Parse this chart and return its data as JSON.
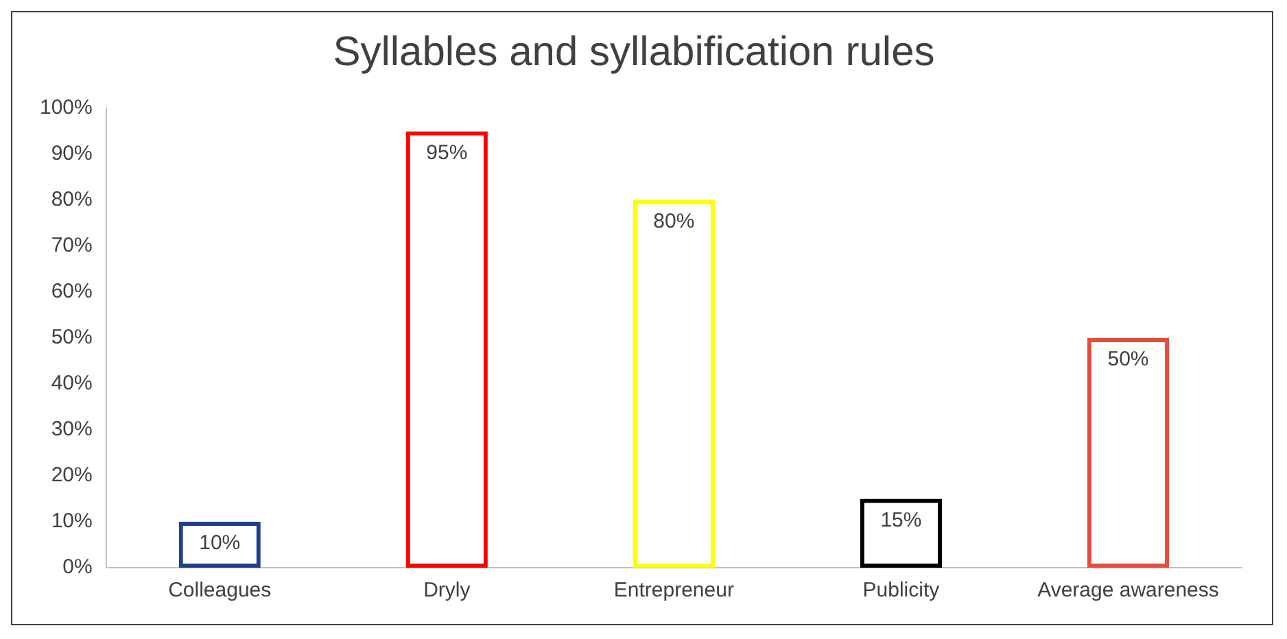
{
  "chart_data": {
    "type": "bar",
    "title": "Syllables and syllabification rules",
    "categories": [
      "Colleagues",
      "Dryly",
      "Entrepreneur",
      "Publicity",
      "Average awareness"
    ],
    "values": [
      10,
      95,
      80,
      15,
      50
    ],
    "colors": [
      "#1f3f8f",
      "#ff0000",
      "#ffff00",
      "#000000",
      "#e84c3d"
    ],
    "value_labels": [
      "10%",
      "95%",
      "80%",
      "15%",
      "50%"
    ],
    "ylim": [
      0,
      100
    ],
    "yticks": [
      {
        "value": 0,
        "label": "0%"
      },
      {
        "value": 10,
        "label": "10%"
      },
      {
        "value": 20,
        "label": "20%"
      },
      {
        "value": 30,
        "label": "30%"
      },
      {
        "value": 40,
        "label": "40%"
      },
      {
        "value": 50,
        "label": "50%"
      },
      {
        "value": 60,
        "label": "60%"
      },
      {
        "value": 70,
        "label": "70%"
      },
      {
        "value": 80,
        "label": "80%"
      },
      {
        "value": 90,
        "label": "90%"
      },
      {
        "value": 100,
        "label": "100%"
      }
    ],
    "grid": false,
    "legend": false
  }
}
